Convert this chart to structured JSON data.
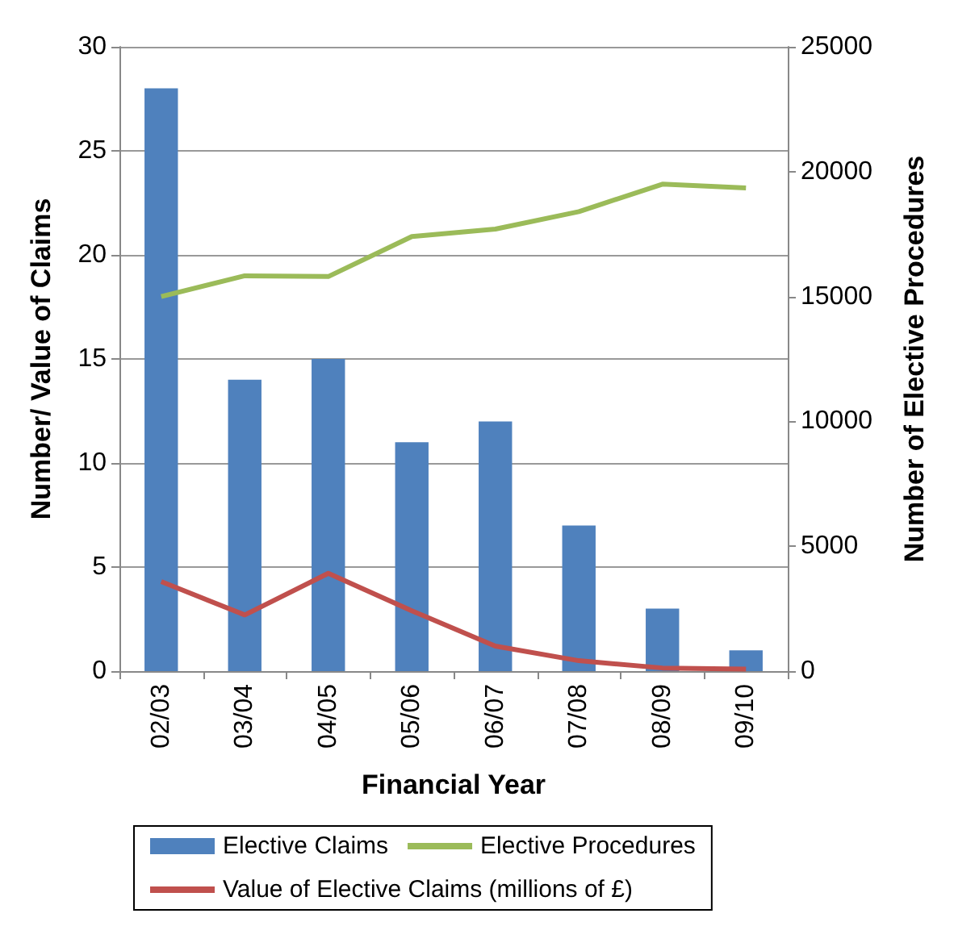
{
  "chart_data": {
    "type": "bar",
    "xlabel": "Financial Year",
    "ylabel": "Number/ Value of Claims",
    "y2label": "Number of Elective Procedures",
    "categories": [
      "02/03",
      "03/04",
      "04/05",
      "05/06",
      "06/07",
      "07/08",
      "08/09",
      "09/10"
    ],
    "series": [
      {
        "name": "Elective Claims",
        "color": "#4f81bd",
        "values": [
          28,
          14,
          15,
          11,
          12,
          7,
          3,
          1
        ]
      },
      {
        "name": "Elective Procedures",
        "type": "line",
        "axis": "y2",
        "color": "#9bbb59",
        "values": [
          15000,
          15830,
          15800,
          17400,
          17700,
          18400,
          19500,
          19350
        ]
      },
      {
        "name": "Value of Elective Claims (millions of £)",
        "type": "line",
        "color": "#c0504d",
        "values": [
          4.3,
          2.7,
          4.7,
          2.9,
          1.2,
          0.5,
          0.15,
          0.1
        ]
      }
    ],
    "ylim": [
      0,
      30
    ],
    "yticks": [
      0,
      5,
      10,
      15,
      20,
      25,
      30
    ],
    "y2lim": [
      0,
      25000
    ],
    "y2ticks": [
      0,
      5000,
      10000,
      15000,
      20000,
      25000
    ],
    "grid": "y",
    "legend": "bottom",
    "marker": "none",
    "line_style": "solid"
  }
}
